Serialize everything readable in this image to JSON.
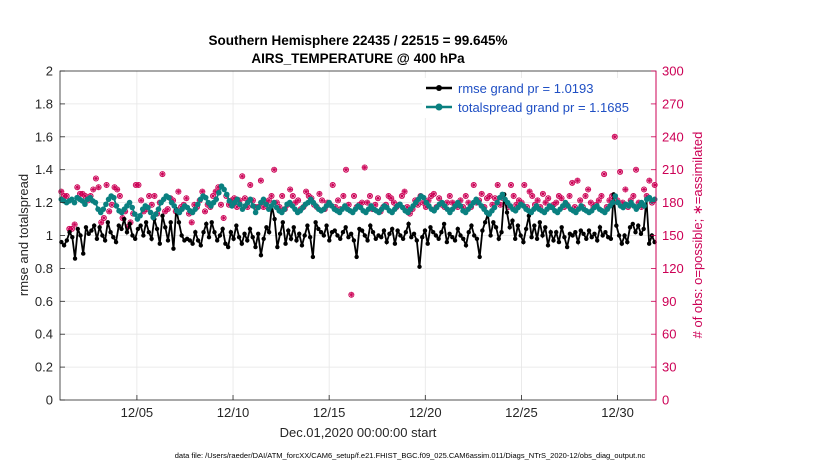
{
  "chart_data": {
    "type": "line",
    "title": "Southern Hemisphere 22435 / 22515 = 99.645%",
    "subtitle": "AIRS_TEMPERATURE @ 400 hPa",
    "xlabel": "Dec.01,2020 00:00:00 start",
    "ylabel": "rmse and totalspread",
    "ylabel_right": "# of obs: o=possible; ∗=assimilated",
    "footer": "data file: /Users/raeder/DAI/ATM_forcXX/CAM6_setup/f.e21.FHIST_BGC.f09_025.CAM6assim.011/Diags_NTrS_2020-12/obs_diag_output.nc",
    "x_tick_labels": [
      "12/05",
      "12/10",
      "12/15",
      "12/20",
      "12/25",
      "12/30"
    ],
    "x_tick_values": [
      5,
      10,
      15,
      20,
      25,
      30
    ],
    "xlim": [
      1,
      32
    ],
    "ylim": [
      0,
      2
    ],
    "y_ticks": [
      "0",
      "0.2",
      "0.4",
      "0.6",
      "0.8",
      "1",
      "1.2",
      "1.4",
      "1.6",
      "1.8",
      "2"
    ],
    "y_right_lim": [
      0,
      300
    ],
    "y_right_ticks": [
      "0",
      "30",
      "60",
      "90",
      "120",
      "150",
      "180",
      "210",
      "240",
      "270",
      "300"
    ],
    "grid": true,
    "legend_position": "top-right",
    "colors": {
      "rmse": "#000000",
      "totalspread": "#0a8080",
      "obs": "#cc0055"
    },
    "series": [
      {
        "name": "rmse grand pr = 1.0193",
        "axis": "left",
        "values": [
          0.96,
          0.94,
          0.97,
          1.02,
          0.99,
          0.86,
          1.04,
          1.0,
          0.89,
          1.05,
          1.01,
          1.03,
          1.06,
          0.98,
          1.05,
          1.0,
          0.97,
          1.08,
          1.02,
          0.99,
          0.96,
          1.06,
          1.04,
          1.1,
          1.02,
          1.07,
          1.0,
          0.98,
          1.04,
          1.06,
          1.0,
          1.08,
          1.02,
          0.98,
          1.1,
          1.04,
          0.95,
          1.12,
          1.05,
          0.97,
          1.08,
          0.92,
          1.16,
          1.08,
          1.0,
          0.97,
          0.98,
          0.97,
          0.95,
          1.02,
          0.97,
          0.94,
          1.02,
          1.07,
          0.99,
          1.08,
          1.02,
          0.97,
          1.0,
          1.04,
          0.95,
          0.93,
          1.02,
          0.98,
          1.06,
          0.99,
          0.95,
          1.01,
          0.97,
          1.04,
          0.99,
          0.93,
          1.01,
          0.88,
          0.98,
          1.05,
          1.02,
          1.18,
          1.1,
          0.93,
          1.01,
          1.08,
          0.95,
          1.03,
          0.98,
          1.05,
          0.97,
          1.01,
          0.94,
          1.0,
          1.06,
          0.99,
          0.87,
          1.08,
          1.04,
          1.02,
          1.0,
          1.06,
          0.97,
          1.02,
          1.03,
          1.0,
          0.98,
          1.02,
          1.05,
          0.99,
          1.01,
          0.97,
          0.87,
          1.04,
          1.03,
          1.0,
          0.97,
          1.06,
          1.02,
          0.98,
          1.0,
          0.99,
          1.03,
          0.96,
          1.01,
          1.04,
          0.95,
          1.03,
          1.0,
          0.98,
          1.02,
          1.07,
          0.99,
          1.01,
          0.97,
          0.81,
          0.99,
          1.03,
          0.95,
          1.05,
          1.02,
          1.0,
          0.98,
          1.02,
          1.07,
          0.96,
          1.01,
          0.99,
          0.97,
          1.04,
          1.0,
          0.98,
          0.94,
          1.02,
          1.06,
          1.0,
          0.98,
          0.87,
          1.03,
          1.08,
          1.13,
          1.0,
          1.08,
          1.05,
          0.98,
          1.02,
          1.25,
          1.14,
          1.05,
          1.09,
          0.98,
          1.06,
          1.0,
          0.96,
          1.04,
          1.12,
          0.99,
          1.06,
          0.98,
          1.08,
          1.0,
          1.05,
          0.94,
          1.02,
          0.97,
          1.02,
          0.96,
          1.05,
          0.99,
          0.93,
          1.01,
          1.0,
          1.02,
          0.96,
          1.03,
          1.01,
          0.98,
          1.03,
          0.99,
          1.01,
          0.97,
          1.05,
          1.0,
          1.02,
          0.99,
          0.98,
          1.25,
          1.06,
          1.0,
          0.95,
          1.0,
          0.96,
          1.05,
          1.07,
          1.02,
          1.06,
          1.01,
          1.04,
          1.22,
          0.95,
          1.0,
          0.96
        ]
      },
      {
        "name": "totalspread grand pr = 1.1685",
        "axis": "left",
        "values": [
          1.22,
          1.21,
          1.2,
          1.21,
          1.22,
          1.2,
          1.23,
          1.22,
          1.21,
          1.19,
          1.22,
          1.23,
          1.21,
          1.2,
          1.16,
          1.14,
          1.16,
          1.19,
          1.22,
          1.24,
          1.23,
          1.18,
          1.15,
          1.14,
          1.16,
          1.18,
          1.2,
          1.17,
          1.13,
          1.1,
          1.12,
          1.16,
          1.18,
          1.17,
          1.14,
          1.11,
          1.13,
          1.16,
          1.2,
          1.22,
          1.24,
          1.23,
          1.2,
          1.18,
          1.15,
          1.14,
          1.16,
          1.18,
          1.17,
          1.15,
          1.14,
          1.16,
          1.19,
          1.22,
          1.24,
          1.23,
          1.2,
          1.18,
          1.2,
          1.22,
          1.26,
          1.3,
          1.28,
          1.25,
          1.21,
          1.18,
          1.2,
          1.22,
          1.19,
          1.16,
          1.18,
          1.2,
          1.22,
          1.18,
          1.14,
          1.17,
          1.2,
          1.22,
          1.19,
          1.16,
          1.18,
          1.2,
          1.17,
          1.15,
          1.14,
          1.16,
          1.19,
          1.2,
          1.18,
          1.16,
          1.14,
          1.15,
          1.17,
          1.19,
          1.2,
          1.22,
          1.2,
          1.18,
          1.16,
          1.15,
          1.16,
          1.18,
          1.2,
          1.18,
          1.16,
          1.15,
          1.14,
          1.16,
          1.18,
          1.16,
          1.15,
          1.14,
          1.16,
          1.18,
          1.17,
          1.15,
          1.14,
          1.16,
          1.18,
          1.16,
          1.15,
          1.14,
          1.16,
          1.18,
          1.17,
          1.15,
          1.14,
          1.16,
          1.18,
          1.19,
          1.17,
          1.15,
          1.14,
          1.16,
          1.18,
          1.2,
          1.22,
          1.24,
          1.23,
          1.2,
          1.18,
          1.16,
          1.15,
          1.17,
          1.19,
          1.2,
          1.18,
          1.16,
          1.14,
          1.16,
          1.18,
          1.2,
          1.18,
          1.15,
          1.14,
          1.16,
          1.18,
          1.2,
          1.22,
          1.2,
          1.18,
          1.16,
          1.14,
          1.13,
          1.15,
          1.17,
          1.2,
          1.23,
          1.25,
          1.22,
          1.2,
          1.18,
          1.16,
          1.15,
          1.17,
          1.19,
          1.18,
          1.16,
          1.15,
          1.14,
          1.16,
          1.18,
          1.16,
          1.15,
          1.14,
          1.16,
          1.18,
          1.17,
          1.15,
          1.14,
          1.16,
          1.18,
          1.2,
          1.18,
          1.16,
          1.15,
          1.14,
          1.16,
          1.18,
          1.16,
          1.15,
          1.14,
          1.15,
          1.17,
          1.18,
          1.16,
          1.15,
          1.14,
          1.16,
          1.18,
          1.2,
          1.24,
          1.2,
          1.18,
          1.17,
          1.19,
          1.18,
          1.2,
          1.18,
          1.16,
          1.18,
          1.2,
          1.18,
          1.22,
          1.23,
          1.21,
          1.22
        ]
      },
      {
        "name": "possible",
        "axis": "right",
        "marker": "circle",
        "values": [
          190,
          186,
          186,
          156,
          156,
          160,
          194,
          188,
          188,
          186,
          182,
          186,
          192,
          202,
          194,
          162,
          166,
          196,
          172,
          178,
          194,
          192,
          186,
          166,
          172,
          158,
          162,
          170,
          196,
          196,
          182,
          172,
          174,
          186,
          178,
          186,
          170,
          180,
          206,
          172,
          174,
          184,
          182,
          172,
          190,
          176,
          178,
          184,
          170,
          162,
          178,
          176,
          182,
          190,
          172,
          178,
          176,
          186,
          190,
          194,
          178,
          166,
          186,
          178,
          182,
          184,
          176,
          182,
          204,
          184,
          176,
          196,
          182,
          176,
          176,
          200,
          176,
          180,
          182,
          186,
          210,
          180,
          176,
          186,
          174,
          178,
          192,
          186,
          180,
          182,
          174,
          176,
          190,
          186,
          184,
          178,
          176,
          188,
          182,
          174,
          180,
          178,
          196,
          176,
          182,
          174,
          186,
          210,
          178,
          96,
          186,
          176,
          178,
          180,
          212,
          180,
          186,
          174,
          178,
          184,
          172,
          176,
          178,
          186,
          184,
          180,
          176,
          178,
          186,
          190,
          176,
          170,
          174,
          182,
          178,
          186,
          180,
          176,
          182,
          186,
          188,
          176,
          184,
          178,
          176,
          180,
          186,
          180,
          178,
          176,
          182,
          176,
          186,
          180,
          176,
          196,
          180,
          182,
          188,
          176,
          184,
          186,
          178,
          184,
          196,
          178,
          184,
          180,
          176,
          196,
          186,
          178,
          182,
          180,
          196,
          176,
          190,
          186,
          178,
          182,
          176,
          188,
          180,
          184,
          176,
          178,
          180,
          186,
          184,
          176,
          178,
          186,
          198,
          176,
          200,
          182,
          176,
          186,
          192,
          180,
          176,
          178,
          182,
          186,
          206,
          176,
          182,
          186,
          240,
          182,
          208,
          180,
          192,
          176,
          182,
          186,
          210,
          180,
          176,
          192,
          186,
          200,
          180,
          196
        ]
      },
      {
        "name": "assimilated",
        "axis": "right",
        "marker": "asterisk",
        "values": [
          190,
          186,
          186,
          156,
          156,
          160,
          194,
          188,
          188,
          186,
          182,
          186,
          192,
          202,
          194,
          162,
          166,
          196,
          172,
          178,
          194,
          192,
          186,
          166,
          172,
          158,
          162,
          170,
          196,
          196,
          182,
          172,
          174,
          186,
          178,
          186,
          170,
          180,
          206,
          172,
          174,
          184,
          182,
          172,
          190,
          176,
          178,
          184,
          170,
          162,
          178,
          176,
          182,
          190,
          172,
          178,
          176,
          186,
          190,
          194,
          178,
          166,
          186,
          178,
          182,
          184,
          176,
          182,
          204,
          184,
          176,
          196,
          182,
          176,
          176,
          200,
          176,
          180,
          182,
          186,
          210,
          180,
          176,
          186,
          174,
          178,
          192,
          186,
          180,
          182,
          174,
          176,
          190,
          186,
          184,
          178,
          176,
          188,
          182,
          174,
          180,
          178,
          196,
          176,
          182,
          174,
          186,
          210,
          178,
          96,
          186,
          176,
          178,
          180,
          212,
          180,
          186,
          174,
          178,
          184,
          172,
          176,
          178,
          186,
          184,
          180,
          176,
          178,
          186,
          190,
          176,
          170,
          174,
          182,
          178,
          186,
          180,
          176,
          182,
          186,
          188,
          176,
          184,
          178,
          176,
          180,
          186,
          180,
          178,
          176,
          182,
          176,
          186,
          180,
          176,
          196,
          180,
          182,
          188,
          176,
          184,
          186,
          178,
          184,
          196,
          178,
          184,
          180,
          176,
          196,
          186,
          178,
          182,
          180,
          196,
          176,
          190,
          186,
          178,
          182,
          176,
          188,
          180,
          184,
          176,
          178,
          180,
          186,
          184,
          176,
          178,
          186,
          198,
          176,
          200,
          182,
          176,
          186,
          192,
          180,
          176,
          178,
          182,
          186,
          206,
          176,
          182,
          186,
          240,
          182,
          208,
          180,
          192,
          176,
          182,
          186,
          210,
          180,
          176,
          192,
          186,
          200,
          180,
          196
        ]
      }
    ]
  }
}
